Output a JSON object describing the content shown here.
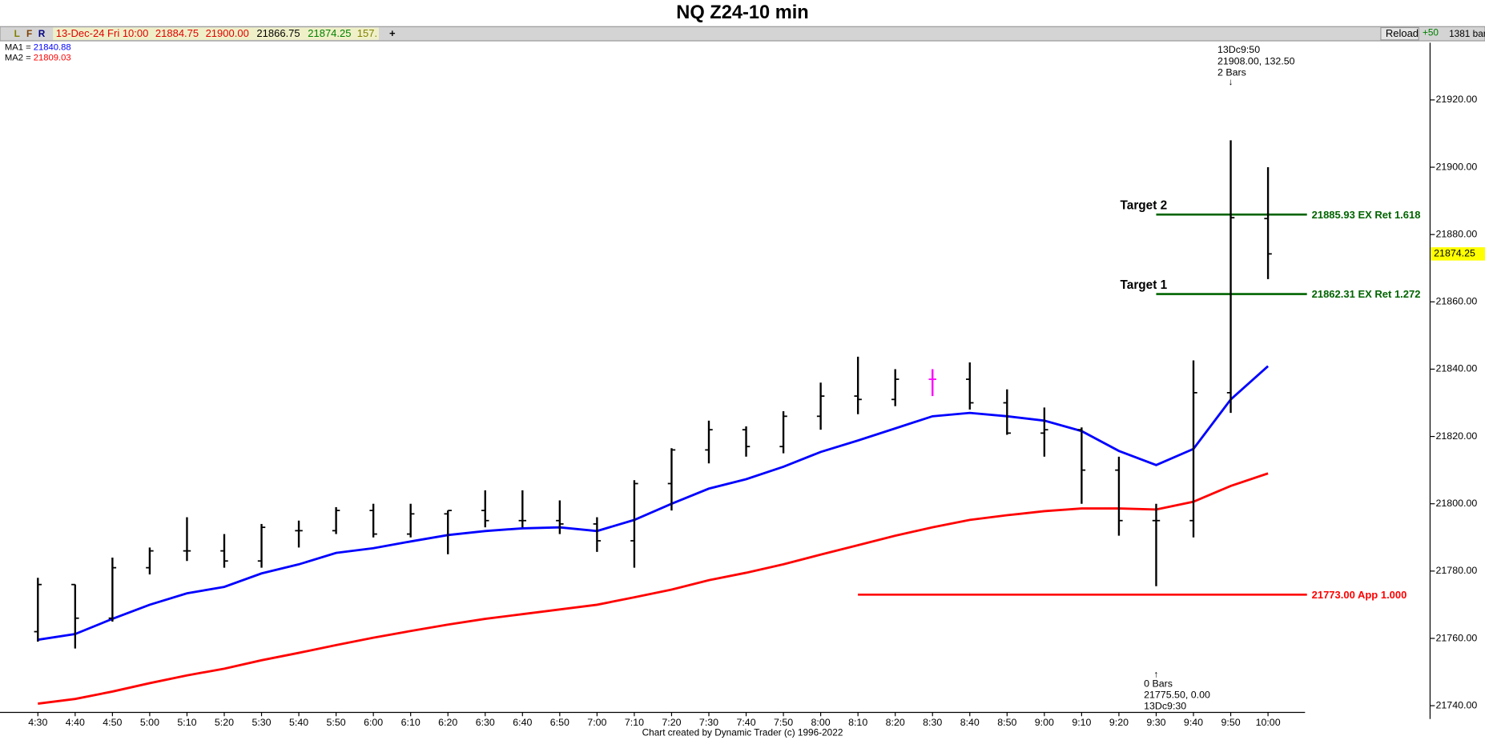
{
  "header": {
    "buttons": [
      "L",
      "F",
      "R"
    ],
    "date": "13-Dec-24 Fri 10:00",
    "open": "21884.75",
    "high": "21900.00",
    "low": "21866.75",
    "close": "21874.25",
    "extra": "157.",
    "add": "+",
    "reload": "Reload",
    "step": "+50",
    "bars": "1381 bar"
  },
  "footer": "Chart created by Dynamic Trader  (c) 1996-2022",
  "chart_data": {
    "type": "ohlc",
    "title": "NQ Z24-10 min",
    "categories": [
      "4:30",
      "4:40",
      "4:50",
      "5:00",
      "5:10",
      "5:20",
      "5:30",
      "5:40",
      "5:50",
      "6:00",
      "6:10",
      "6:20",
      "6:30",
      "6:40",
      "6:50",
      "7:00",
      "7:10",
      "7:20",
      "7:30",
      "7:40",
      "7:50",
      "8:00",
      "8:10",
      "8:20",
      "8:30",
      "8:40",
      "8:50",
      "9:00",
      "9:10",
      "9:20",
      "9:30",
      "9:40",
      "9:50",
      "10:00"
    ],
    "open": [
      21762,
      21776,
      21766,
      21781,
      21786,
      21786,
      21783,
      21792,
      21792,
      21798,
      21791,
      21797,
      21798,
      21795,
      21795,
      21794,
      21789,
      21806,
      21816,
      21822,
      21817,
      21826,
      21832,
      21831,
      21837,
      21837,
      21830,
      21821,
      21822,
      21810,
      21795,
      21795,
      21833,
      21884.75
    ],
    "high": [
      21778,
      21776,
      21784,
      21787,
      21796,
      21791,
      21794,
      21795,
      21799,
      21800,
      21800,
      21798,
      21804,
      21804,
      21801,
      21796,
      21807,
      21816.5,
      21824.7,
      21823,
      21827.5,
      21836,
      21843.7,
      21840,
      21840,
      21842,
      21834,
      21828.6,
      21822.7,
      21814,
      21800,
      21842.6,
      21908,
      21900
    ],
    "low": [
      21759,
      21757,
      21765,
      21779,
      21783,
      21781,
      21781,
      21787,
      21791,
      21790,
      21790,
      21785,
      21793,
      21793,
      21791,
      21785.7,
      21781,
      21798,
      21812,
      21814,
      21815,
      21822,
      21826.6,
      21829,
      21832,
      21828,
      21820.5,
      21814,
      21800,
      21790.5,
      21775.5,
      21790,
      21827,
      21866.75
    ],
    "close": [
      21776,
      21766,
      21781,
      21786,
      21786,
      21783,
      21793,
      21792,
      21798,
      21791,
      21797,
      21798,
      21795,
      21795,
      21794,
      21789,
      21806,
      21816,
      21822,
      21817,
      21826,
      21832,
      21831,
      21837,
      21837,
      21830,
      21821,
      21822,
      21810,
      21795,
      21795,
      21833,
      21885,
      21874.25
    ],
    "bar_color": "#000000",
    "highlight_category": "8:30",
    "highlight_color": "#ff00ff",
    "series": [
      {
        "name": "MA1",
        "color": "#0000ff",
        "values": [
          21759.6,
          21761.3,
          21765.8,
          21770,
          21773.4,
          21775.3,
          21779.3,
          21782,
          21785.4,
          21786.8,
          21788.8,
          21790.7,
          21791.9,
          21792.7,
          21793,
          21791.9,
          21795.2,
          21800,
          21804.5,
          21807.3,
          21811,
          21815.4,
          21818.8,
          21822.4,
          21826,
          21827,
          21826,
          21824.7,
          21821.6,
          21815.7,
          21811.5,
          21816.3,
          21831,
          21840.88
        ]
      },
      {
        "name": "MA2",
        "color": "#ff0000",
        "values": [
          21740.6,
          21742,
          21744.2,
          21746.7,
          21749,
          21751,
          21753.5,
          21755.7,
          21758,
          21760.2,
          21762.2,
          21764.1,
          21765.8,
          21767.2,
          21768.6,
          21770,
          21772.2,
          21774.5,
          21777.3,
          21779.5,
          21782,
          21784.9,
          21787.7,
          21790.5,
          21793,
          21795.2,
          21796.6,
          21797.8,
          21798.6,
          21798.6,
          21798.3,
          21800.6,
          21805.3,
          21809.03
        ]
      }
    ],
    "levels": [
      {
        "tag": "Target 2",
        "value": 21885.93,
        "label": "21885.93 EX Ret 1.618",
        "color": "#006400",
        "start": "9:30"
      },
      {
        "tag": "Target 1",
        "value": 21862.31,
        "label": "21862.31 EX Ret 1.272",
        "color": "#006400",
        "start": "9:30"
      },
      {
        "value": 21773,
        "label": "21773.00 App 1.000",
        "color": "#ff0000",
        "start": "8:10"
      }
    ],
    "annotations": [
      {
        "category": "9:50",
        "position": "top",
        "lines": [
          "13Dc9:50",
          "21908.00, 132.50",
          "2 Bars"
        ],
        "arrow": "↓"
      },
      {
        "category": "9:30",
        "position": "bottom",
        "lines": [
          "0 Bars",
          "21775.50, 0.00",
          "13Dc9:30"
        ],
        "arrow": "↑"
      }
    ],
    "last_price_color": "#ffff00",
    "ylim": [
      21738,
      21937
    ],
    "yticks": [
      {
        "value": 21740,
        "label": "21740.00"
      },
      {
        "value": 21760,
        "label": "21760.00"
      },
      {
        "value": 21780,
        "label": "21780.00"
      },
      {
        "value": 21800,
        "label": "21800.00"
      },
      {
        "value": 21820,
        "label": "21820.00"
      },
      {
        "value": 21840,
        "label": "21840.00"
      },
      {
        "value": 21860,
        "label": "21860.00"
      },
      {
        "value": 21880,
        "label": "21880.00"
      },
      {
        "value": 21900,
        "label": "21900.00"
      },
      {
        "value": 21920,
        "label": "21920.00"
      }
    ]
  }
}
